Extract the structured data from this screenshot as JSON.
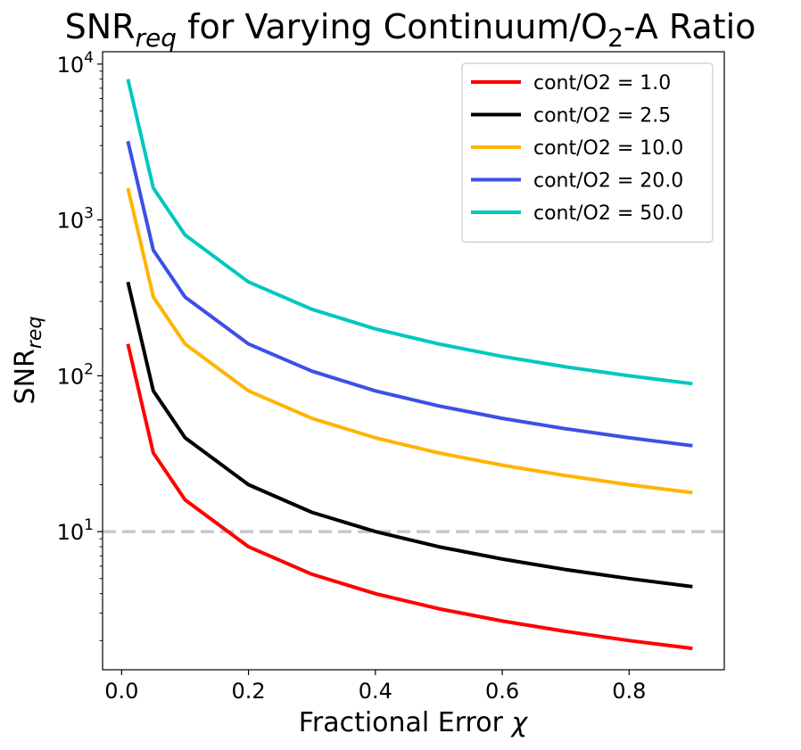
{
  "chart_data": {
    "type": "line",
    "title": {
      "prefix": "SNR",
      "subscript": "req",
      "middle": " for Varying Continuum/O",
      "subscript2": "2",
      "suffix": "-A Ratio"
    },
    "xlabel": {
      "text": "Fractional Error ",
      "symbol": "χ"
    },
    "ylabel": {
      "text": "SNR",
      "subscript": "req"
    },
    "xlim": [
      -0.03,
      0.95
    ],
    "ylim": [
      1.3,
      12000
    ],
    "yscale": "log",
    "xticks": [
      {
        "value": 0.0,
        "label": "0.0"
      },
      {
        "value": 0.2,
        "label": "0.2"
      },
      {
        "value": 0.4,
        "label": "0.4"
      },
      {
        "value": 0.6,
        "label": "0.6"
      },
      {
        "value": 0.8,
        "label": "0.8"
      }
    ],
    "yticks": [
      {
        "value": 10,
        "base": "10",
        "exp": "1"
      },
      {
        "value": 100,
        "base": "10",
        "exp": "2"
      },
      {
        "value": 1000,
        "base": "10",
        "exp": "3"
      },
      {
        "value": 10000,
        "base": "10",
        "exp": "4"
      }
    ],
    "reference_line": {
      "y": 10,
      "color": "#c8c8c8",
      "style": "dashed"
    },
    "legend_position": "top-right",
    "grid": false,
    "x": [
      0.01,
      0.05,
      0.1,
      0.2,
      0.3,
      0.4,
      0.5,
      0.6,
      0.7,
      0.8,
      0.9
    ],
    "series": [
      {
        "name": "cont/O2 = 1.0",
        "color": "#ff0000",
        "values": [
          160,
          32,
          16,
          8,
          5.33,
          4,
          3.2,
          2.67,
          2.29,
          2,
          1.78
        ]
      },
      {
        "name": "cont/O2 = 2.5",
        "color": "#000000",
        "values": [
          400,
          80,
          40,
          20,
          13.3,
          10,
          8,
          6.67,
          5.71,
          5,
          4.44
        ]
      },
      {
        "name": "cont/O2 = 10.0",
        "color": "#ffb400",
        "values": [
          1600,
          320,
          160,
          80,
          53.3,
          40,
          32,
          26.7,
          22.9,
          20,
          17.8
        ]
      },
      {
        "name": "cont/O2 = 20.0",
        "color": "#3c50e6",
        "values": [
          3200,
          640,
          320,
          160,
          107,
          80,
          64,
          53.3,
          45.7,
          40,
          35.6
        ]
      },
      {
        "name": "cont/O2 = 50.0",
        "color": "#00c8be",
        "values": [
          8000,
          1600,
          800,
          400,
          267,
          200,
          160,
          133,
          114,
          100,
          88.9
        ]
      }
    ]
  }
}
